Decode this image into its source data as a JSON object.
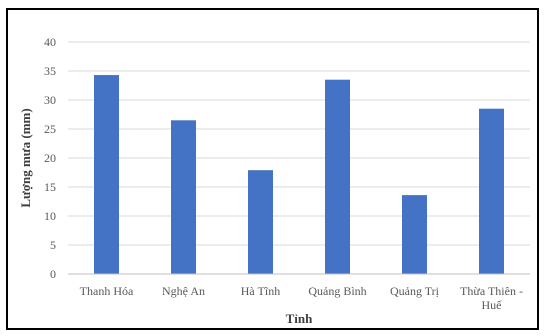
{
  "chart_data": {
    "type": "bar",
    "title": "",
    "xlabel": "Tỉnh",
    "ylabel": "Lượng mưa (mm)",
    "categories": [
      "Thanh Hóa",
      "Nghệ An",
      "Hà Tĩnh",
      "Quảng Bình",
      "Quảng Trị",
      "Thừa Thiên - Huế"
    ],
    "values": [
      34.3,
      26.5,
      17.9,
      33.5,
      13.6,
      28.5
    ],
    "ylim": [
      0,
      40
    ],
    "yticks": [
      0,
      5,
      10,
      15,
      20,
      25,
      30,
      35,
      40
    ],
    "grid": true,
    "legend": "none",
    "bar_color": "#4472C4",
    "grid_color": "#D9D9D9"
  }
}
